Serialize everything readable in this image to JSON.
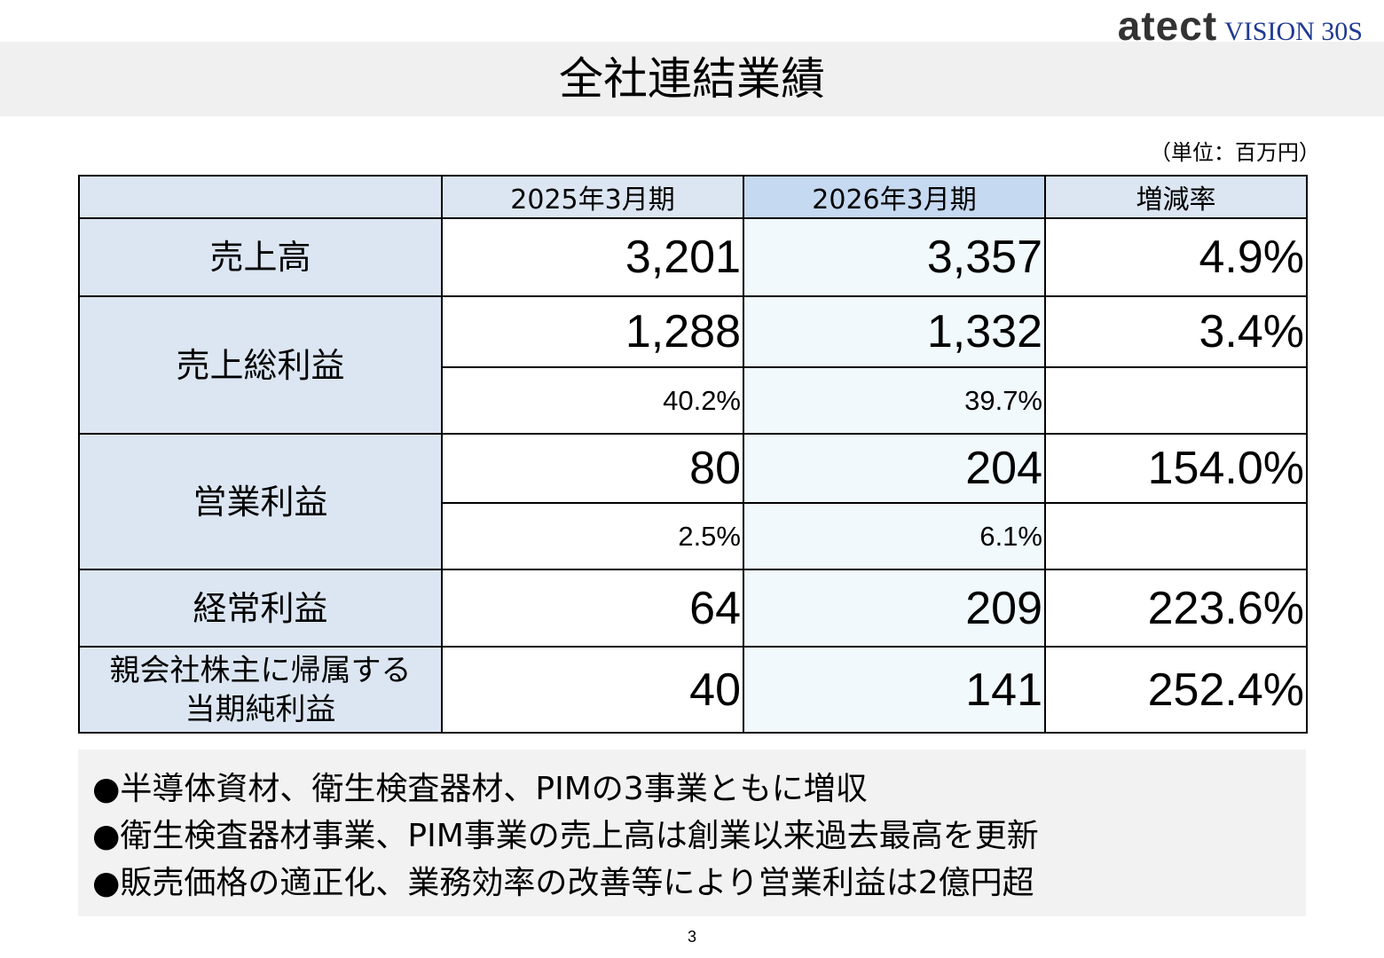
{
  "header": {
    "logo_brand": "atect",
    "logo_sub": "VISION 30S",
    "title": "全社連結業績",
    "unit": "（単位：百万円）"
  },
  "table": {
    "columns": [
      "2025年3月期",
      "2026年3月期",
      "増減率"
    ],
    "rows": [
      {
        "label": [
          "売上高"
        ],
        "cells": [
          "3,201",
          "3,357",
          "4.9%"
        ]
      },
      {
        "label": [
          "売上総利益"
        ],
        "cells": [
          "1,288",
          "1,332",
          "3.4%"
        ],
        "ratios": [
          "40.2%",
          "39.7%"
        ]
      },
      {
        "label": [
          "営業利益"
        ],
        "cells": [
          "80",
          "204",
          "154.0%"
        ],
        "ratios": [
          "2.5%",
          "6.1%"
        ]
      },
      {
        "label": [
          "経常利益"
        ],
        "cells": [
          "64",
          "209",
          "223.6%"
        ]
      },
      {
        "label": [
          "親会社株主に帰属する",
          "当期純利益"
        ],
        "cells": [
          "40",
          "141",
          "252.4%"
        ]
      }
    ]
  },
  "notes": [
    "●半導体資材、衛生検査器材、PIMの3事業ともに増収",
    "●衛生検査器材事業、PIM事業の売上高は創業以来過去最高を更新",
    "●販売価格の適正化、業務効率の改善等により営業利益は2億円超"
  ],
  "footer": {
    "page": "3"
  }
}
